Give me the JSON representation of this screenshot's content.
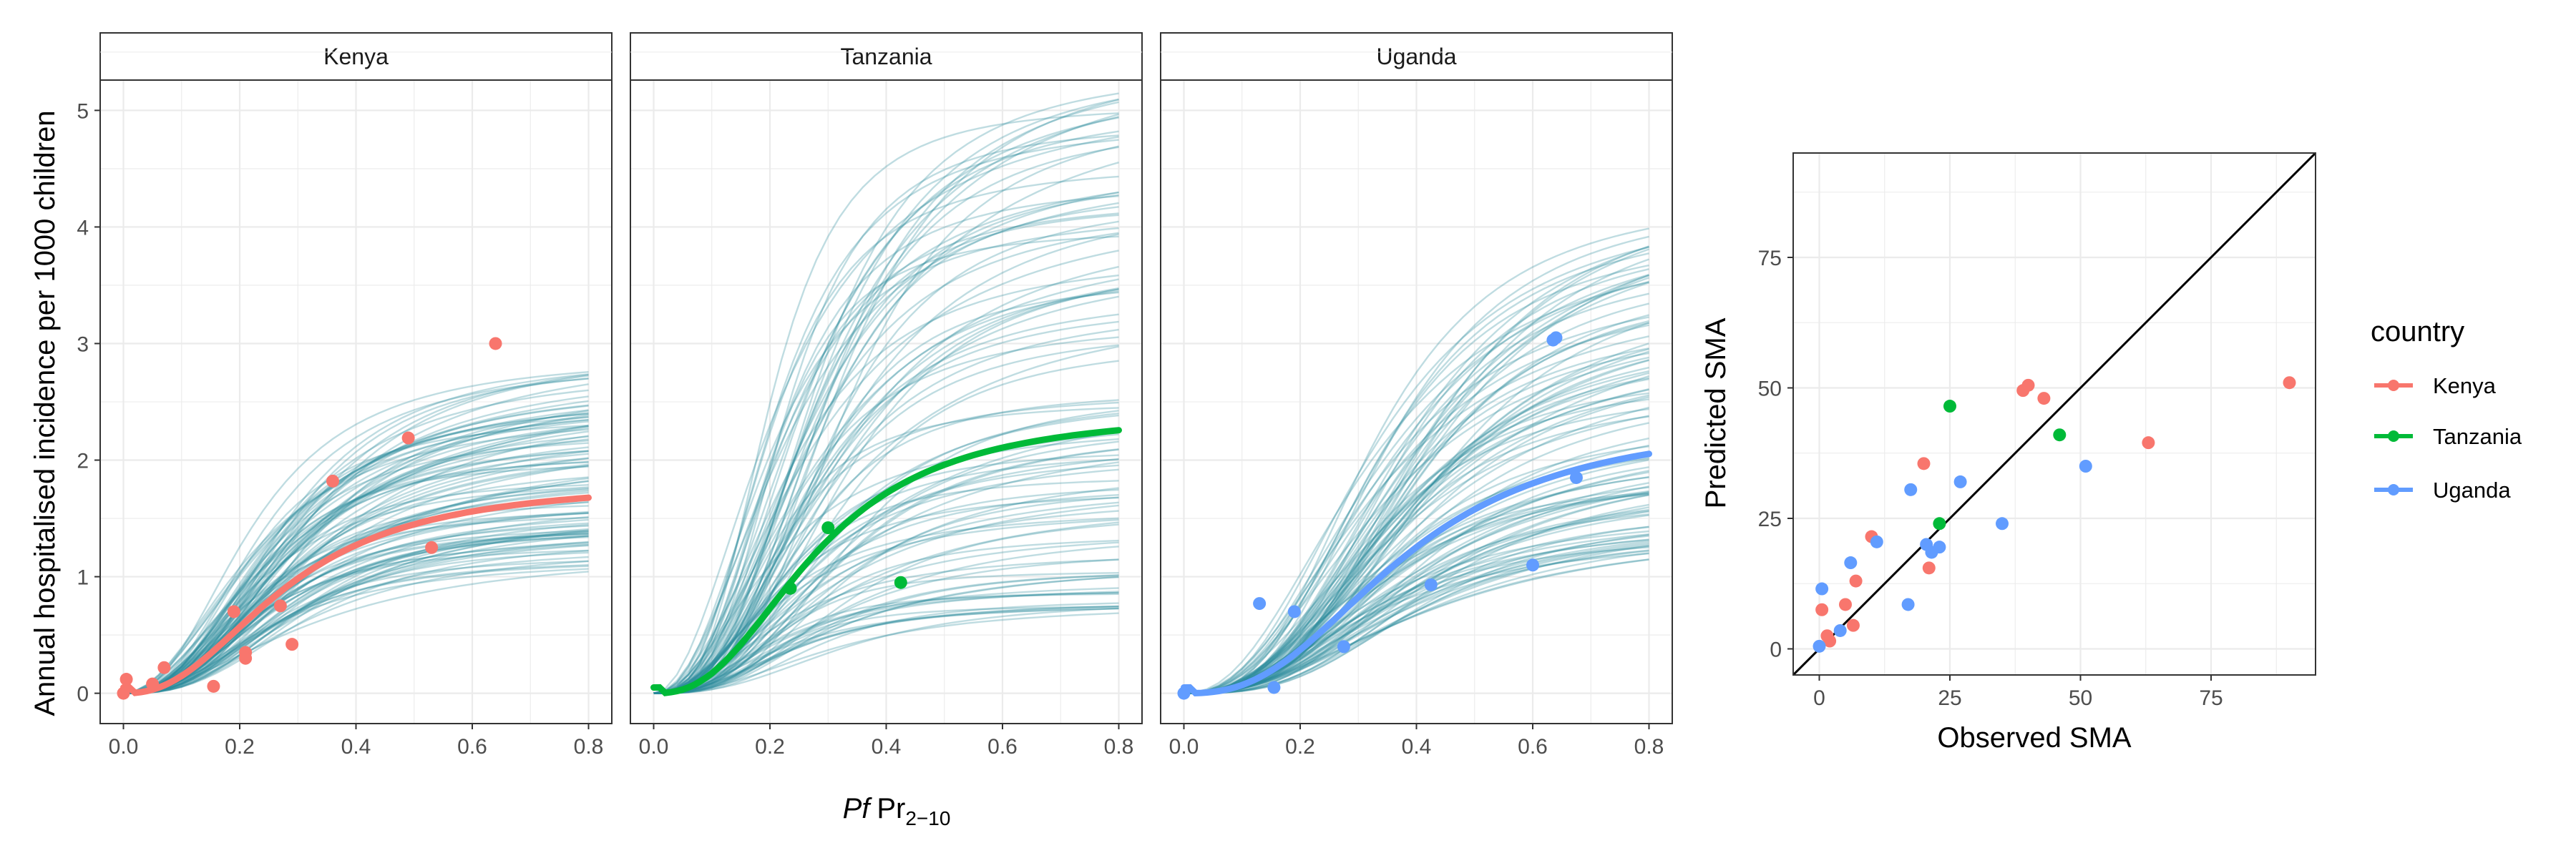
{
  "figure": {
    "y_axis_title": "Annual hospitalised incidence per 1000 children",
    "x_axis_title_italic": "Pf",
    "x_axis_title_main": "Pr",
    "x_axis_title_sub": "2−10",
    "scatter_x_title": "Observed SMA",
    "scatter_y_title": "Predicted SMA"
  },
  "legend": {
    "title": "country",
    "items": [
      {
        "label": "Kenya",
        "color": "#F8766D"
      },
      {
        "label": "Tanzania",
        "color": "#00BA38"
      },
      {
        "label": "Uganda",
        "color": "#619CFF"
      }
    ]
  },
  "colors": {
    "posterior_draws": "#2A8C9A",
    "diagonal": "#000000",
    "panel_border": "#333333",
    "grid": "#ebebeb"
  },
  "chart_data": [
    {
      "type": "line",
      "facet": "Kenya",
      "xlim": [
        -0.04,
        0.84
      ],
      "ylim": [
        -0.26,
        5.26
      ],
      "x_ticks": [
        "0.0",
        "0.2",
        "0.4",
        "0.6",
        "0.8"
      ],
      "y_ticks": [
        "0",
        "1",
        "2",
        "3",
        "4",
        "5"
      ],
      "mean_curve": {
        "color": "#F8766D",
        "plateau": 1.82,
        "x50": 0.28,
        "steep": 2.35
      },
      "posterior_draws": {
        "count": 100,
        "plateau_range": [
          1.15,
          2.95
        ],
        "x50_range": [
          0.22,
          0.34
        ],
        "steep_range": [
          1.9,
          3.0
        ]
      },
      "points": [
        {
          "x": 0.0,
          "y": 0.0
        },
        {
          "x": 0.005,
          "y": 0.12
        },
        {
          "x": 0.05,
          "y": 0.08
        },
        {
          "x": 0.07,
          "y": 0.22
        },
        {
          "x": 0.155,
          "y": 0.06
        },
        {
          "x": 0.19,
          "y": 0.7
        },
        {
          "x": 0.21,
          "y": 0.35
        },
        {
          "x": 0.21,
          "y": 0.3
        },
        {
          "x": 0.27,
          "y": 0.75
        },
        {
          "x": 0.29,
          "y": 0.42
        },
        {
          "x": 0.36,
          "y": 1.82
        },
        {
          "x": 0.49,
          "y": 2.19
        },
        {
          "x": 0.53,
          "y": 1.25
        },
        {
          "x": 0.64,
          "y": 3.0
        }
      ]
    },
    {
      "type": "line",
      "facet": "Tanzania",
      "xlim": [
        -0.04,
        0.84
      ],
      "ylim": [
        -0.26,
        5.26
      ],
      "x_ticks": [
        "0.0",
        "0.2",
        "0.4",
        "0.6",
        "0.8"
      ],
      "mean_curve": {
        "color": "#00BA38",
        "plateau": 2.42,
        "x50": 0.28,
        "steep": 2.5
      },
      "posterior_draws": {
        "count": 100,
        "plateau_range": [
          0.75,
          5.5
        ],
        "x50_range": [
          0.2,
          0.34
        ],
        "steep_range": [
          2.0,
          3.2
        ]
      },
      "points": [
        {
          "x": 0.235,
          "y": 0.9
        },
        {
          "x": 0.3,
          "y": 1.42
        },
        {
          "x": 0.425,
          "y": 0.95
        }
      ]
    },
    {
      "type": "line",
      "facet": "Uganda",
      "xlim": [
        -0.04,
        0.84
      ],
      "ylim": [
        -0.26,
        5.26
      ],
      "x_ticks": [
        "0.0",
        "0.2",
        "0.4",
        "0.6",
        "0.8"
      ],
      "mean_curve": {
        "color": "#619CFF",
        "plateau": 2.35,
        "x50": 0.38,
        "steep": 2.6
      },
      "posterior_draws": {
        "count": 100,
        "plateau_range": [
          1.35,
          4.6
        ],
        "x50_range": [
          0.32,
          0.44
        ],
        "steep_range": [
          2.2,
          3.2
        ]
      },
      "points": [
        {
          "x": 0.0,
          "y": 0.0
        },
        {
          "x": 0.13,
          "y": 0.77
        },
        {
          "x": 0.155,
          "y": 0.05
        },
        {
          "x": 0.19,
          "y": 0.7
        },
        {
          "x": 0.275,
          "y": 0.4
        },
        {
          "x": 0.425,
          "y": 0.93
        },
        {
          "x": 0.6,
          "y": 1.1
        },
        {
          "x": 0.635,
          "y": 3.03
        },
        {
          "x": 0.64,
          "y": 3.05
        },
        {
          "x": 0.675,
          "y": 1.85
        }
      ]
    },
    {
      "type": "scatter",
      "xlabel": "Observed SMA",
      "ylabel": "Predicted SMA",
      "xlim": [
        -5,
        95
      ],
      "ylim": [
        -5,
        95
      ],
      "x_ticks": [
        "0",
        "25",
        "50",
        "75"
      ],
      "y_ticks": [
        "0",
        "25",
        "50",
        "75"
      ],
      "reference_line": "y = x",
      "series": [
        {
          "name": "Kenya",
          "color": "#F8766D",
          "points": [
            [
              0.5,
              7.5
            ],
            [
              1.5,
              2.5
            ],
            [
              2,
              1.5
            ],
            [
              5,
              8.5
            ],
            [
              6.5,
              4.5
            ],
            [
              7,
              13
            ],
            [
              10,
              21.5
            ],
            [
              20,
              35.5
            ],
            [
              21,
              15.5
            ],
            [
              39,
              49.5
            ],
            [
              40,
              50.5
            ],
            [
              43,
              48
            ],
            [
              63,
              39.5
            ],
            [
              90,
              51
            ]
          ]
        },
        {
          "name": "Tanzania",
          "color": "#00BA38",
          "points": [
            [
              23,
              24
            ],
            [
              25,
              46.5
            ],
            [
              46,
              41
            ]
          ]
        },
        {
          "name": "Uganda",
          "color": "#619CFF",
          "points": [
            [
              0,
              0.5
            ],
            [
              0.5,
              11.5
            ],
            [
              4,
              3.5
            ],
            [
              6,
              16.5
            ],
            [
              11,
              20.5
            ],
            [
              17,
              8.5
            ],
            [
              17.5,
              30.5
            ],
            [
              20.5,
              20
            ],
            [
              21.5,
              18.5
            ],
            [
              23,
              19.5
            ],
            [
              27,
              32
            ],
            [
              35,
              24
            ],
            [
              51,
              35
            ]
          ]
        }
      ]
    }
  ]
}
